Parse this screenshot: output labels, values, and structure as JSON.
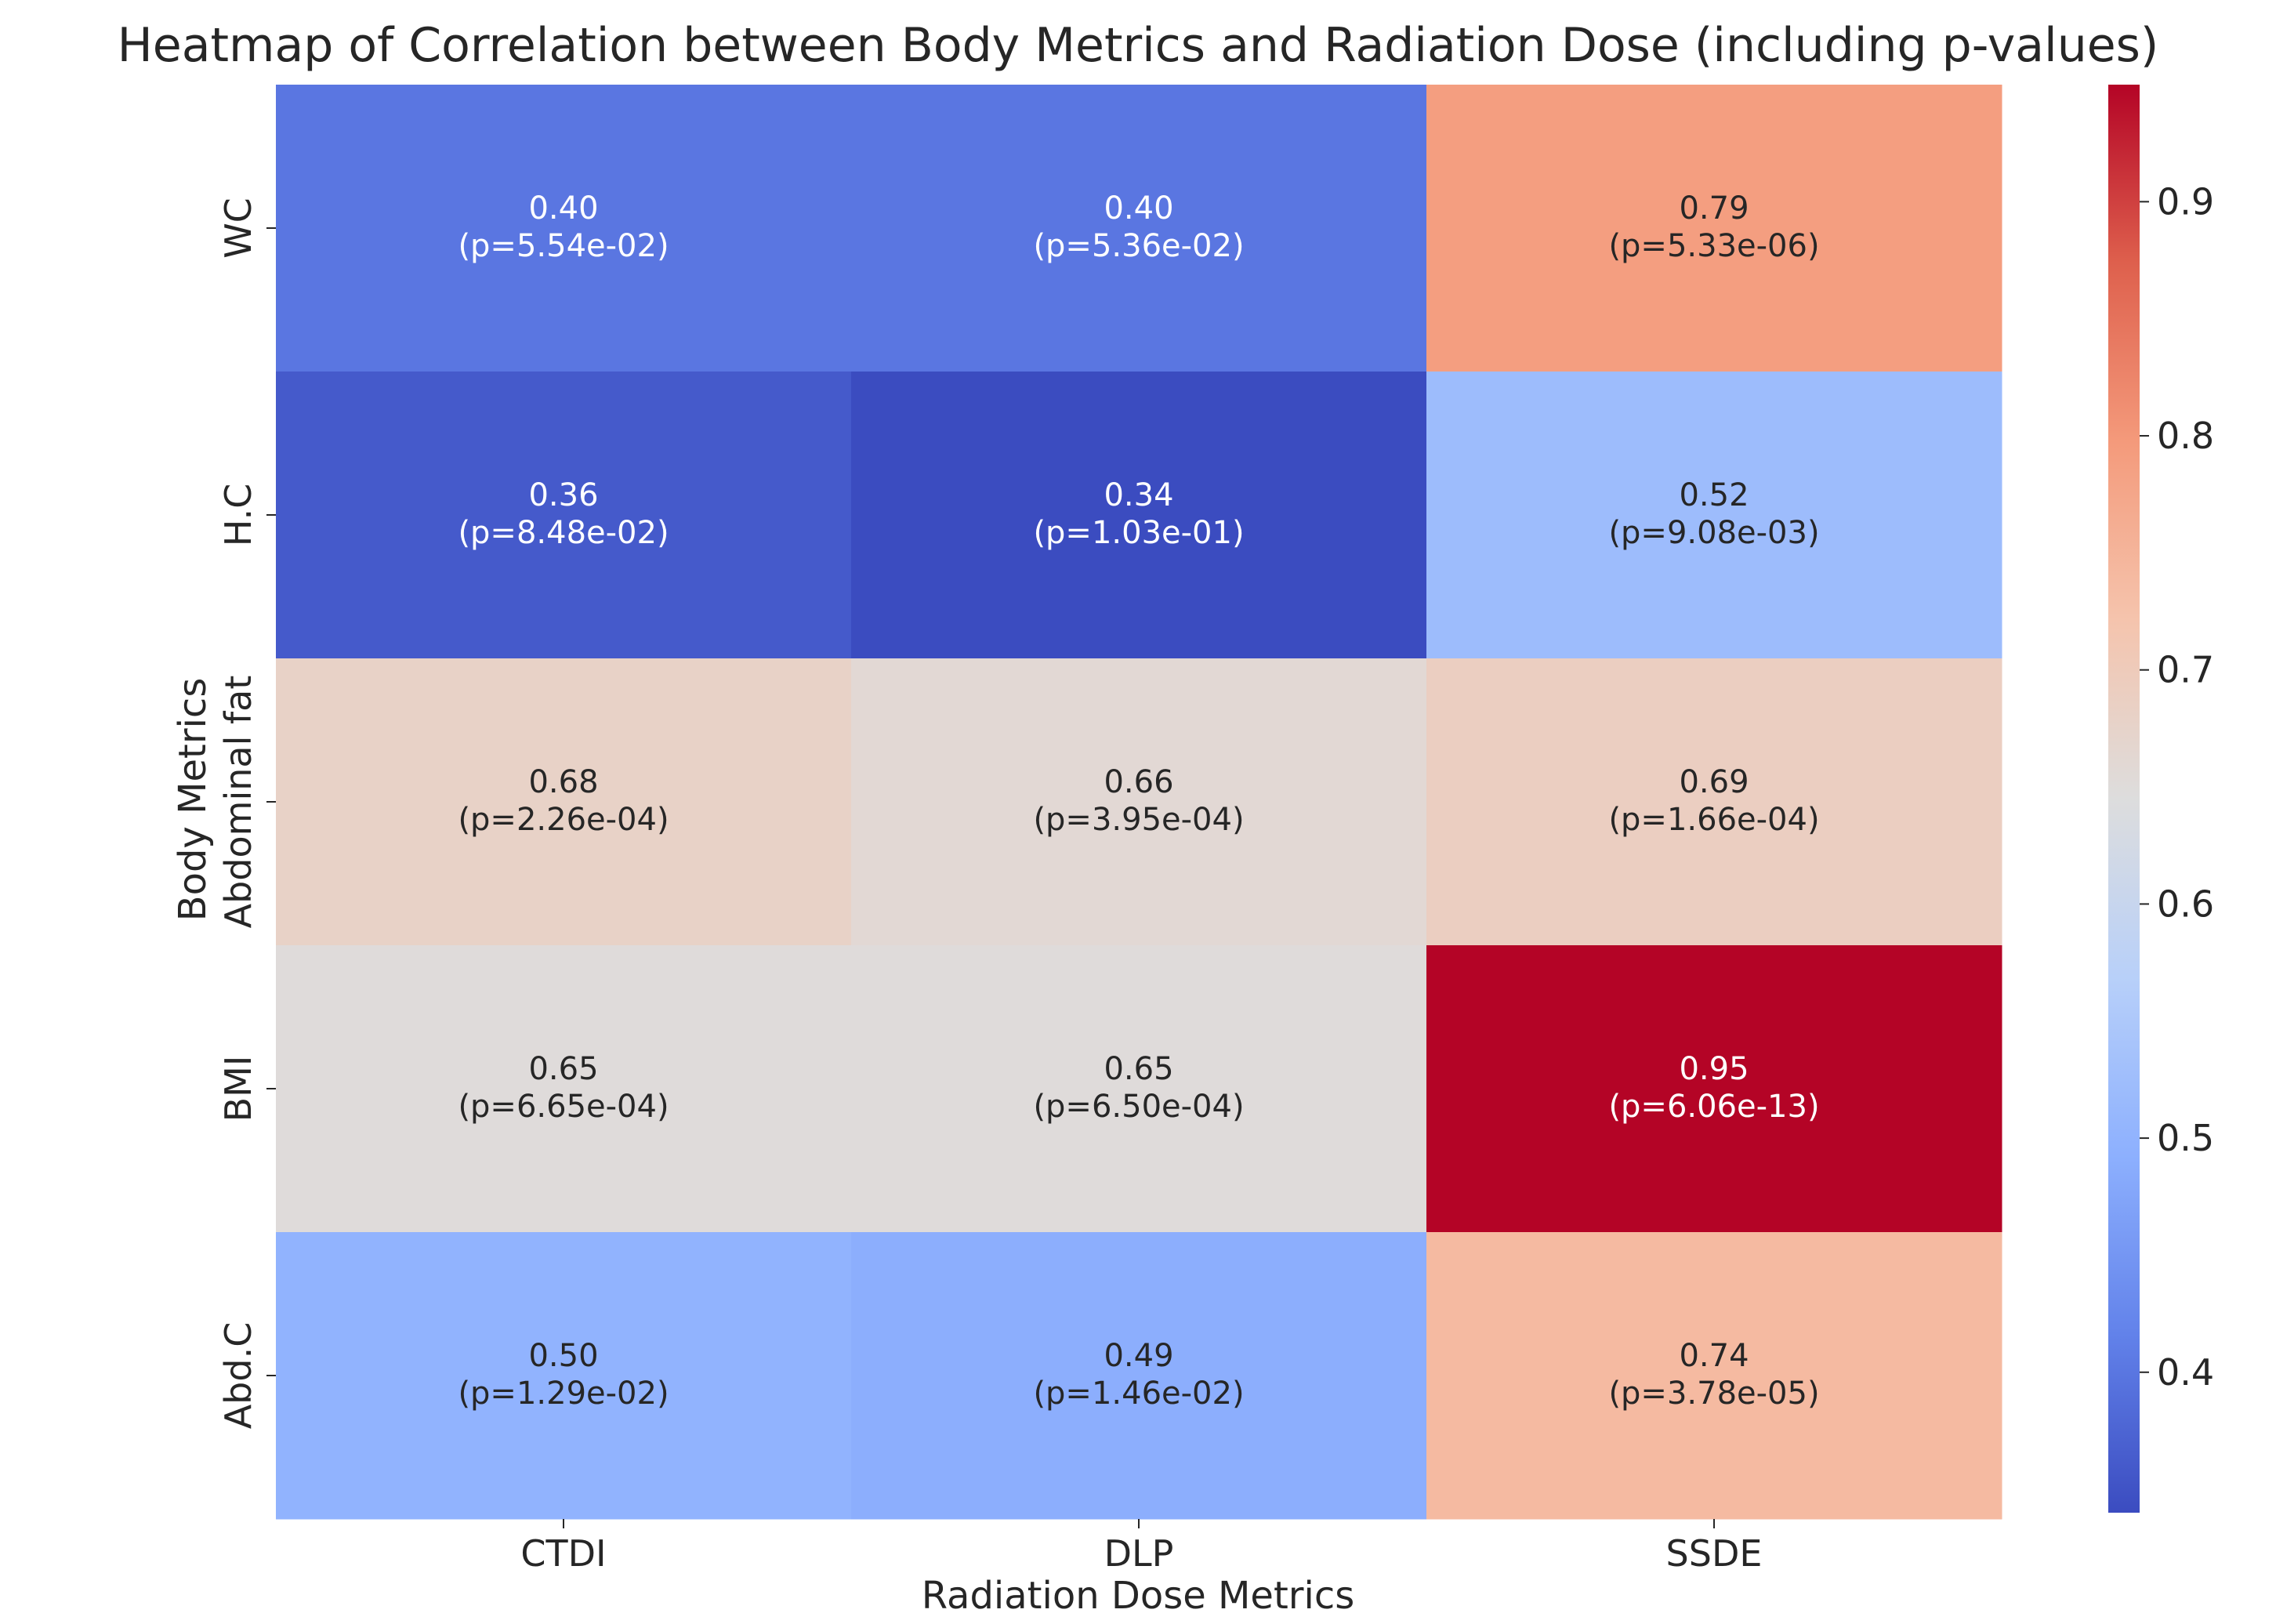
{
  "chart_data": {
    "type": "heatmap",
    "title": "Heatmap of Correlation between Body Metrics and Radiation Dose (including p-values)",
    "xlabel": "Radiation Dose Metrics",
    "ylabel": "Body Metrics",
    "columns": [
      "CTDI",
      "DLP",
      "SSDE"
    ],
    "rows": [
      "WC",
      "H.C",
      "Abdominal fat",
      "BMI",
      "Abd.C"
    ],
    "values": [
      [
        0.4,
        0.4,
        0.79
      ],
      [
        0.36,
        0.34,
        0.52
      ],
      [
        0.68,
        0.66,
        0.69
      ],
      [
        0.65,
        0.65,
        0.95
      ],
      [
        0.5,
        0.49,
        0.74
      ]
    ],
    "value_labels": [
      [
        "0.40",
        "0.40",
        "0.79"
      ],
      [
        "0.36",
        "0.34",
        "0.52"
      ],
      [
        "0.68",
        "0.66",
        "0.69"
      ],
      [
        "0.65",
        "0.65",
        "0.95"
      ],
      [
        "0.50",
        "0.49",
        "0.74"
      ]
    ],
    "p_labels": [
      [
        "(p=5.54e-02)",
        "(p=5.36e-02)",
        "(p=5.33e-06)"
      ],
      [
        "(p=8.48e-02)",
        "(p=1.03e-01)",
        "(p=9.08e-03)"
      ],
      [
        "(p=2.26e-04)",
        "(p=3.95e-04)",
        "(p=1.66e-04)"
      ],
      [
        "(p=6.65e-04)",
        "(p=6.50e-04)",
        "(p=6.06e-13)"
      ],
      [
        "(p=1.29e-02)",
        "(p=1.46e-02)",
        "(p=3.78e-05)"
      ]
    ],
    "colormap": "coolwarm",
    "colorbar": {
      "range": [
        0.34,
        0.95
      ],
      "ticks": [
        0.4,
        0.5,
        0.6,
        0.7,
        0.8,
        0.9
      ],
      "tick_labels": [
        "0.4",
        "0.5",
        "0.6",
        "0.7",
        "0.8",
        "0.9"
      ]
    }
  }
}
